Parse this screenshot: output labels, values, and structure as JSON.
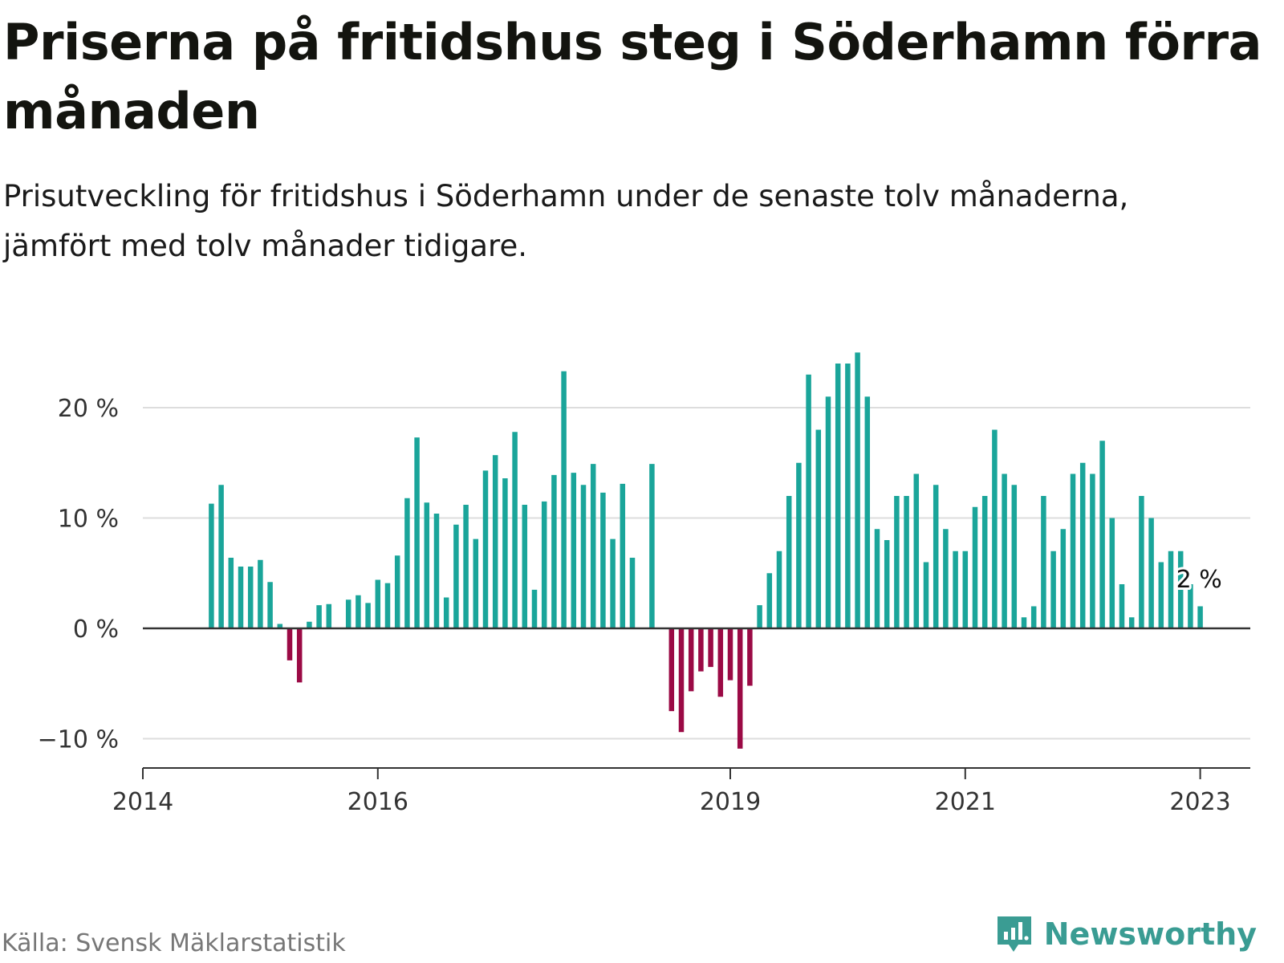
{
  "title": "Priserna på fritidshus steg i Söderhamn förra månaden",
  "subtitle": "Prisutveckling för fritidshus i Söderhamn under de senaste tolv månaderna, jämfört med tolv månader tidigare.",
  "source": "Källa: Svensk Mäklarstatistik",
  "brand": {
    "name": "Newsworthy",
    "icon": "newsworthy-logo-icon",
    "color": "#3a9c93"
  },
  "colors": {
    "positive": "#1aa59a",
    "negative": "#9b0a45",
    "grid": "#dddddd",
    "axis": "#333333"
  },
  "chart_data": {
    "type": "bar",
    "xlabel": "",
    "ylabel": "",
    "ylim": [
      -12,
      27
    ],
    "y_ticks": [
      {
        "value": -10,
        "label": "−10 %"
      },
      {
        "value": 0,
        "label": "0 %"
      },
      {
        "value": 10,
        "label": "10 %"
      },
      {
        "value": 20,
        "label": "20 %"
      }
    ],
    "x_ticks": [
      {
        "date": "2014-01",
        "label": "2014"
      },
      {
        "date": "2016-01",
        "label": "2016"
      },
      {
        "date": "2019-01",
        "label": "2019"
      },
      {
        "date": "2021-01",
        "label": "2021"
      },
      {
        "date": "2023-01",
        "label": "2023"
      }
    ],
    "x_range": [
      "2014-01",
      "2023-06"
    ],
    "grid": true,
    "legend": "none",
    "series": [
      {
        "values": [
          [
            "2014-08",
            11.3
          ],
          [
            "2014-09",
            13.0
          ],
          [
            "2014-10",
            6.4
          ],
          [
            "2014-11",
            5.6
          ],
          [
            "2014-12",
            5.6
          ],
          [
            "2015-01",
            6.2
          ],
          [
            "2015-02",
            4.2
          ],
          [
            "2015-03",
            0.4
          ],
          [
            "2015-04",
            -2.9
          ],
          [
            "2015-05",
            -4.9
          ],
          [
            "2015-06",
            0.6
          ],
          [
            "2015-07",
            2.1
          ],
          [
            "2015-08",
            2.2
          ],
          [
            "2015-10",
            2.6
          ],
          [
            "2015-11",
            3.0
          ],
          [
            "2015-12",
            2.3
          ],
          [
            "2016-01",
            4.4
          ],
          [
            "2016-02",
            4.1
          ],
          [
            "2016-03",
            6.6
          ],
          [
            "2016-04",
            11.8
          ],
          [
            "2016-05",
            17.3
          ],
          [
            "2016-06",
            11.4
          ],
          [
            "2016-07",
            10.4
          ],
          [
            "2016-08",
            2.8
          ],
          [
            "2016-09",
            9.4
          ],
          [
            "2016-10",
            11.2
          ],
          [
            "2016-11",
            8.1
          ],
          [
            "2016-12",
            14.3
          ],
          [
            "2017-01",
            15.7
          ],
          [
            "2017-02",
            13.6
          ],
          [
            "2017-03",
            17.8
          ],
          [
            "2017-04",
            11.2
          ],
          [
            "2017-05",
            3.5
          ],
          [
            "2017-06",
            11.5
          ],
          [
            "2017-07",
            13.9
          ],
          [
            "2017-08",
            23.3
          ],
          [
            "2017-09",
            14.1
          ],
          [
            "2017-10",
            13.0
          ],
          [
            "2017-11",
            14.9
          ],
          [
            "2017-12",
            12.3
          ],
          [
            "2018-01",
            8.1
          ],
          [
            "2018-02",
            13.1
          ],
          [
            "2018-03",
            6.4
          ],
          [
            "2018-05",
            14.9
          ],
          [
            "2018-07",
            -7.5
          ],
          [
            "2018-08",
            -9.4
          ],
          [
            "2018-09",
            -5.7
          ],
          [
            "2018-10",
            -3.9
          ],
          [
            "2018-11",
            -3.5
          ],
          [
            "2018-12",
            -6.2
          ],
          [
            "2019-01",
            -4.7
          ],
          [
            "2019-02",
            -10.9
          ],
          [
            "2019-03",
            -5.2
          ],
          [
            "2019-04",
            2.1
          ],
          [
            "2019-05",
            5.0
          ],
          [
            "2019-06",
            7.0
          ],
          [
            "2019-07",
            12.0
          ],
          [
            "2019-08",
            15.0
          ],
          [
            "2019-09",
            23.0
          ],
          [
            "2019-10",
            18.0
          ],
          [
            "2019-11",
            21.0
          ],
          [
            "2019-12",
            24.0
          ],
          [
            "2020-01",
            24.0
          ],
          [
            "2020-02",
            25.0
          ],
          [
            "2020-03",
            21.0
          ],
          [
            "2020-04",
            9.0
          ],
          [
            "2020-05",
            8.0
          ],
          [
            "2020-06",
            12.0
          ],
          [
            "2020-07",
            12.0
          ],
          [
            "2020-08",
            14.0
          ],
          [
            "2020-09",
            6.0
          ],
          [
            "2020-10",
            13.0
          ],
          [
            "2020-11",
            9.0
          ],
          [
            "2020-12",
            7.0
          ],
          [
            "2021-01",
            7.0
          ],
          [
            "2021-02",
            11.0
          ],
          [
            "2021-03",
            12.0
          ],
          [
            "2021-04",
            18.0
          ],
          [
            "2021-05",
            14.0
          ],
          [
            "2021-06",
            13.0
          ],
          [
            "2021-07",
            1.0
          ],
          [
            "2021-08",
            2.0
          ],
          [
            "2021-09",
            12.0
          ],
          [
            "2021-10",
            7.0
          ],
          [
            "2021-11",
            9.0
          ],
          [
            "2021-12",
            14.0
          ],
          [
            "2022-01",
            15.0
          ],
          [
            "2022-02",
            14.0
          ],
          [
            "2022-03",
            17.0
          ],
          [
            "2022-04",
            10.0
          ],
          [
            "2022-05",
            4.0
          ],
          [
            "2022-06",
            1.0
          ],
          [
            "2022-07",
            12.0
          ],
          [
            "2022-08",
            10.0
          ],
          [
            "2022-09",
            6.0
          ],
          [
            "2022-10",
            7.0
          ],
          [
            "2022-11",
            7.0
          ],
          [
            "2022-12",
            4.0
          ],
          [
            "2023-01",
            2.0
          ]
        ]
      }
    ],
    "annotation": {
      "date": "2023-01",
      "value": 2.0,
      "label": "2 %"
    }
  }
}
